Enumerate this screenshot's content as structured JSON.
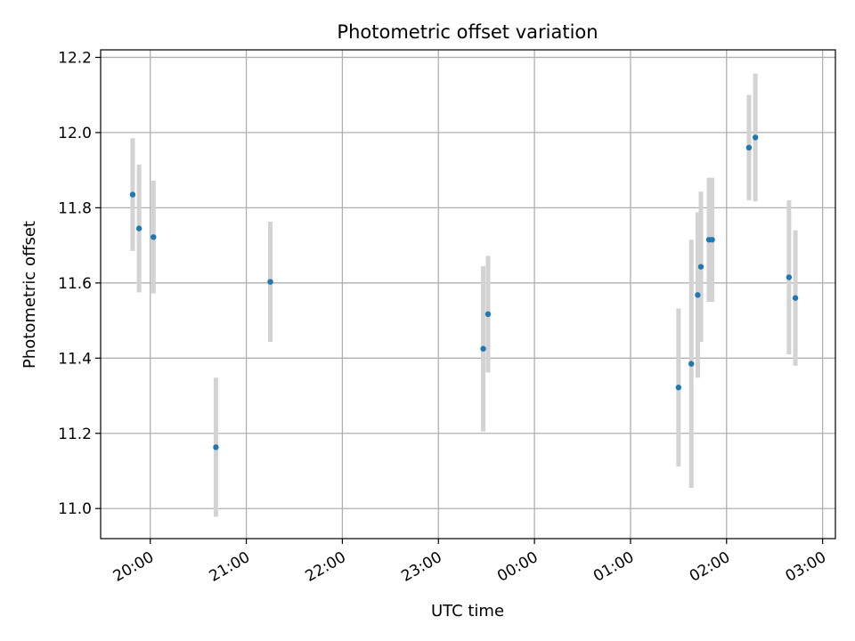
{
  "chart_data": {
    "type": "scatter",
    "title": "Photometric offset variation",
    "xlabel": "UTC time",
    "ylabel": "Photometric offset",
    "x_tick_labels": [
      "20:00",
      "21:00",
      "22:00",
      "23:00",
      "00:00",
      "01:00",
      "02:00",
      "03:00"
    ],
    "y_tick_labels": [
      "11.0",
      "11.2",
      "11.4",
      "11.6",
      "11.8",
      "12.0",
      "12.2"
    ],
    "xlim": [
      "19:29",
      "03:08"
    ],
    "ylim": [
      10.92,
      12.22
    ],
    "grid": true,
    "marker_color": "#1f77b4",
    "errorbar_color": "#d3d3d3",
    "points": [
      {
        "x": "19:49",
        "y": 11.835,
        "err": 0.15
      },
      {
        "x": "19:53",
        "y": 11.745,
        "err": 0.17
      },
      {
        "x": "20:02",
        "y": 11.722,
        "err": 0.15
      },
      {
        "x": "20:41",
        "y": 11.163,
        "err": 0.185
      },
      {
        "x": "21:15",
        "y": 11.603,
        "err": 0.16
      },
      {
        "x": "23:28",
        "y": 11.425,
        "err": 0.22
      },
      {
        "x": "23:31",
        "y": 11.517,
        "err": 0.155
      },
      {
        "x": "01:30",
        "y": 11.322,
        "err": 0.21
      },
      {
        "x": "01:38",
        "y": 11.385,
        "err": 0.33
      },
      {
        "x": "01:42",
        "y": 11.568,
        "err": 0.22
      },
      {
        "x": "01:44",
        "y": 11.643,
        "err": 0.2
      },
      {
        "x": "01:49",
        "y": 11.715,
        "err": 0.165
      },
      {
        "x": "01:51",
        "y": 11.715,
        "err": 0.165
      },
      {
        "x": "02:14",
        "y": 11.96,
        "err": 0.14
      },
      {
        "x": "02:18",
        "y": 11.987,
        "err": 0.17
      },
      {
        "x": "02:39",
        "y": 11.615,
        "err": 0.205
      },
      {
        "x": "02:43",
        "y": 11.56,
        "err": 0.18
      }
    ]
  }
}
